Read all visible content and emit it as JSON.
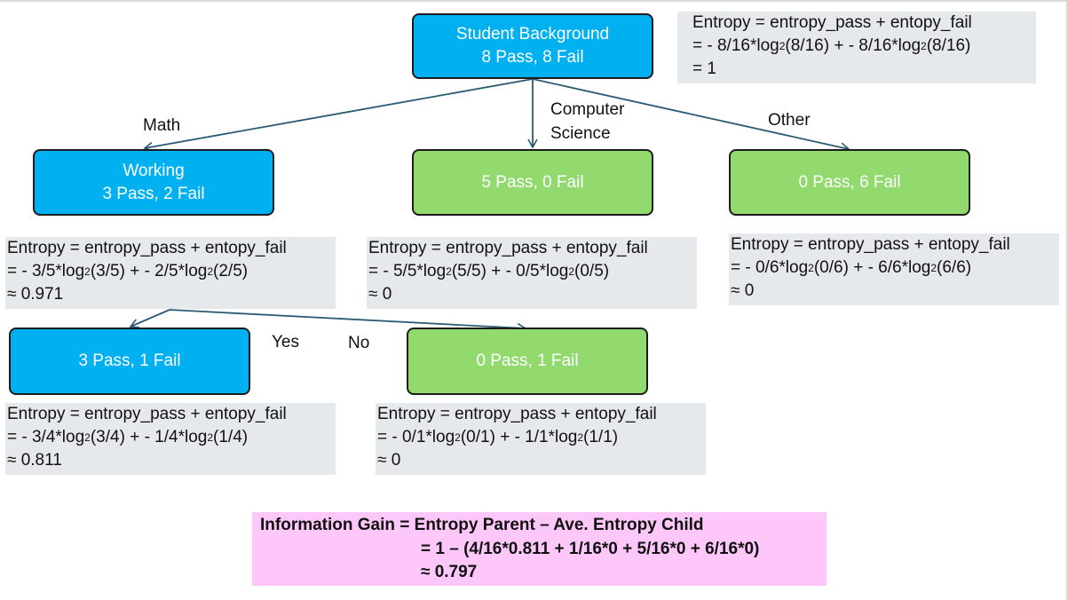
{
  "nodes": {
    "root": {
      "line1": "Student Background",
      "line2": "8 Pass, 8 Fail"
    },
    "math": {
      "line1": "Working",
      "line2": "3 Pass, 2 Fail"
    },
    "cs": {
      "line1": "5 Pass, 0 Fail"
    },
    "other": {
      "line1": "0 Pass, 6 Fail"
    },
    "yes": {
      "line1": "3 Pass, 1 Fail"
    },
    "no": {
      "line1": "0 Pass, 1 Fail"
    }
  },
  "edge_labels": {
    "math": "Math",
    "cs_line1": "Computer",
    "cs_line2": "Science",
    "other": "Other",
    "yes": "Yes",
    "no": "No"
  },
  "entropy": {
    "root": {
      "l1": "Entropy  =  entropy_pass + entopy_fail",
      "l2a": "= -  8/16*log",
      "l2sub1": "2",
      "l2b": "(8/16) +  - 8/16*log",
      "l2sub2": "2",
      "l2c": "(8/16)",
      "l3": "= 1"
    },
    "math": {
      "l1": "Entropy  =  entropy_pass + entopy_fail",
      "l2a": "= - 3/5*log",
      "l2sub1": "2",
      "l2b": "(3/5) + - 2/5*log",
      "l2sub2": "2",
      "l2c": " (2/5)",
      "l3": "≈ 0.971"
    },
    "cs": {
      "l1": "Entropy  =  entropy_pass + entopy_fail",
      "l2a": "= - 5/5*log",
      "l2sub1": "2",
      "l2b": "(5/5) + - 0/5*log",
      "l2sub2": "2",
      "l2c": " (0/5)",
      "l3": "≈ 0"
    },
    "other": {
      "l1": "Entropy  =  entropy_pass + entopy_fail",
      "l2a": "= - 0/6*log",
      "l2sub1": "2",
      "l2b": "(0/6) + - 6/6*log",
      "l2sub2": "2",
      "l2c": " (6/6)",
      "l3": "≈ 0"
    },
    "yes": {
      "l1": "Entropy  =  entropy_pass + entopy_fail",
      "l2a": "= - 3/4*log",
      "l2sub1": "2",
      "l2b": "(3/4) + - 1/4*log",
      "l2sub2": "2",
      "l2c": " (1/4)",
      "l3": "≈ 0.811"
    },
    "no": {
      "l1": "Entropy  =  entropy_pass + entopy_fail",
      "l2a": "= - 0/1*log",
      "l2sub1": "2",
      "l2b": "(0/1) + - 1/1*log",
      "l2sub2": "2",
      "l2c": " (1/1)",
      "l3": "≈ 0"
    }
  },
  "information_gain": {
    "l1": "Information Gain  =  Entropy Parent – Ave.  Entropy Child",
    "l2": "= 1 – (4/16*0.811 + 1/16*0 + 5/16*0 + 6/16*0)",
    "l3": "≈ 0.797"
  },
  "colors": {
    "blue_node": "#00b0f0",
    "green_node": "#92d96e",
    "entropy_box": "#e6e9ec",
    "gain_box": "#fdc8f9",
    "arrow": "#2a5a73"
  }
}
